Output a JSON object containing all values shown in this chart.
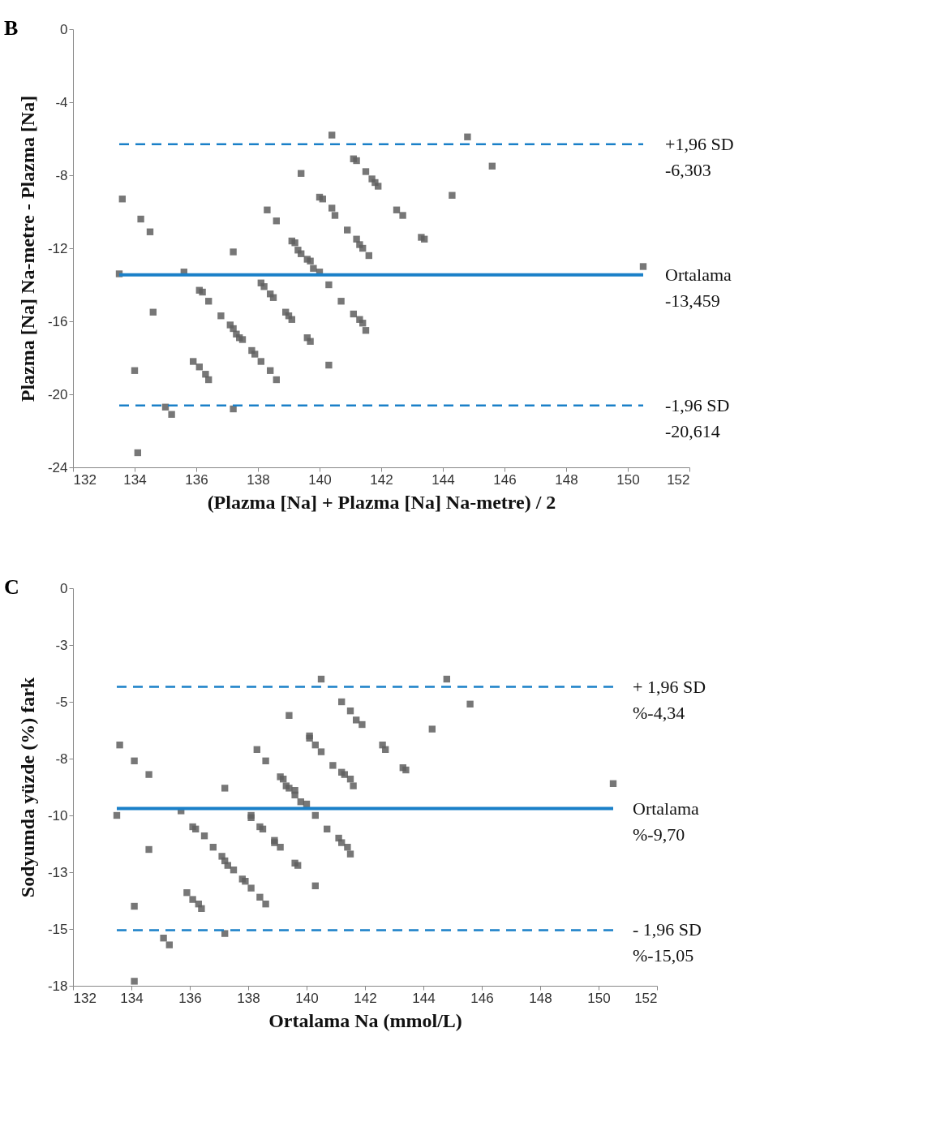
{
  "chart_data": [
    {
      "type": "scatter",
      "title": "B",
      "xlabel": "(Plazma [Na] + Plazma [Na] Na-metre) / 2",
      "ylabel": "Plazma [Na] Na-metre - Plazma [Na]",
      "marker": "square",
      "grid": false,
      "xlim": [
        132,
        152
      ],
      "xticks": [
        132,
        134,
        136,
        138,
        140,
        142,
        144,
        146,
        148,
        150,
        152
      ],
      "ylim": [
        -24,
        0
      ],
      "yticks": [
        0,
        -4,
        -8,
        -12,
        -16,
        -20,
        -24
      ],
      "series": [
        {
          "color": "#5f5f5f",
          "x": [
            133.6,
            134.2,
            134.5,
            133.5,
            135.6,
            134.6,
            136.1,
            136.2,
            136.4,
            136.8,
            137.1,
            137.2,
            137.3,
            137.4,
            137.5,
            135.9,
            136.1,
            136.3,
            136.4,
            134.0,
            135.0,
            135.2,
            137.2,
            134.1,
            137.2,
            138.3,
            138.6,
            138.1,
            138.2,
            138.4,
            138.5,
            138.9,
            139.0,
            139.1,
            137.8,
            137.9,
            138.1,
            138.4,
            138.6,
            139.1,
            139.2,
            139.3,
            139.4,
            139.6,
            139.7,
            139.8,
            140.0,
            139.4,
            139.6,
            139.7,
            140.0,
            140.1,
            140.4,
            140.5,
            140.3,
            140.7,
            140.3,
            140.4,
            141.1,
            141.2,
            141.5,
            141.7,
            141.8,
            141.9,
            140.9,
            141.2,
            141.3,
            141.4,
            141.6,
            141.1,
            141.3,
            141.4,
            141.5,
            142.5,
            142.7,
            143.3,
            143.4,
            144.3,
            144.8,
            145.6,
            150.5
          ],
          "values": [
            -9.3,
            -10.4,
            -11.1,
            -13.4,
            -13.3,
            -15.5,
            -14.3,
            -14.4,
            -14.9,
            -15.7,
            -16.2,
            -16.4,
            -16.7,
            -16.9,
            -17.0,
            -18.2,
            -18.5,
            -18.9,
            -19.2,
            -18.7,
            -20.7,
            -21.1,
            -20.8,
            -23.2,
            -12.2,
            -9.9,
            -10.5,
            -13.9,
            -14.1,
            -14.5,
            -14.7,
            -15.5,
            -15.7,
            -15.9,
            -17.6,
            -17.8,
            -18.2,
            -18.7,
            -19.2,
            -11.6,
            -11.7,
            -12.1,
            -12.3,
            -12.6,
            -12.7,
            -13.1,
            -13.3,
            -7.9,
            -16.9,
            -17.1,
            -9.2,
            -9.3,
            -9.8,
            -10.2,
            -14.0,
            -14.9,
            -18.4,
            -5.8,
            -7.1,
            -7.2,
            -7.8,
            -8.2,
            -8.4,
            -8.6,
            -11.0,
            -11.5,
            -11.8,
            -12.0,
            -12.4,
            -15.6,
            -15.9,
            -16.1,
            -16.5,
            -9.9,
            -10.2,
            -11.4,
            -11.5,
            -9.1,
            -5.9,
            -7.5,
            -13.0
          ]
        }
      ],
      "ref_lines": [
        {
          "axis": "y",
          "value": -6.303,
          "label": "+1,96 SD\n-6,303",
          "color": "#1a80c8",
          "line_style": "dashed"
        },
        {
          "axis": "y",
          "value": -13.459,
          "label": "Ortalama\n-13,459",
          "color": "#1a80c8",
          "line_style": "solid"
        },
        {
          "axis": "y",
          "value": -20.614,
          "label": "-1,96 SD\n-20,614",
          "color": "#1a80c8",
          "line_style": "dashed"
        }
      ]
    },
    {
      "type": "scatter",
      "title": "C",
      "xlabel": "Ortalama Na (mmol/L)",
      "ylabel": "Sodyumda yüzde (%) fark",
      "marker": "square",
      "grid": false,
      "xlim": [
        132,
        152
      ],
      "xticks": [
        132,
        134,
        136,
        138,
        140,
        142,
        144,
        146,
        148,
        150,
        152
      ],
      "ylim": [
        -17.5,
        0
      ],
      "yticks": [
        0,
        {
          "value": -2.5,
          "label": "-3"
        },
        -5,
        {
          "value": -7.5,
          "label": "-8"
        },
        -10,
        {
          "value": -12.5,
          "label": "-13"
        },
        -15,
        {
          "value": -17.5,
          "label": "-18"
        }
      ],
      "series": [
        {
          "color": "#5f5f5f",
          "x": [
            133.6,
            134.1,
            134.6,
            133.5,
            135.7,
            134.6,
            136.1,
            136.2,
            136.5,
            136.8,
            137.1,
            137.2,
            137.3,
            137.5,
            135.9,
            136.1,
            136.3,
            136.4,
            134.1,
            135.1,
            135.3,
            137.2,
            134.1,
            137.2,
            138.3,
            138.6,
            138.1,
            138.1,
            138.4,
            138.5,
            138.9,
            138.9,
            139.1,
            137.8,
            137.9,
            138.1,
            138.4,
            138.6,
            139.1,
            139.2,
            139.3,
            139.4,
            139.6,
            139.6,
            139.8,
            140.0,
            139.4,
            139.6,
            139.7,
            140.1,
            140.1,
            140.3,
            140.5,
            140.3,
            140.3,
            140.5,
            144.8,
            141.2,
            141.5,
            141.7,
            141.9,
            140.9,
            141.2,
            141.3,
            141.5,
            141.6,
            140.7,
            141.1,
            141.2,
            141.4,
            141.5,
            142.6,
            142.7,
            143.3,
            143.4,
            144.3,
            145.6,
            150.5
          ],
          "values": [
            -6.9,
            -7.6,
            -8.2,
            -10.0,
            -9.8,
            -11.5,
            -10.5,
            -10.6,
            -10.9,
            -11.4,
            -11.8,
            -12.0,
            -12.2,
            -12.4,
            -13.4,
            -13.7,
            -13.9,
            -14.1,
            -14.0,
            -15.4,
            -15.7,
            -15.2,
            -17.3,
            -8.8,
            -7.1,
            -7.6,
            -10.0,
            -10.1,
            -10.5,
            -10.6,
            -11.1,
            -11.2,
            -11.4,
            -12.8,
            -12.9,
            -13.2,
            -13.6,
            -13.9,
            -8.3,
            -8.4,
            -8.7,
            -8.8,
            -8.9,
            -9.1,
            -9.4,
            -9.5,
            -5.6,
            -12.1,
            -12.2,
            -6.5,
            -6.6,
            -6.9,
            -7.2,
            -10.0,
            -13.1,
            -4.0,
            -4.0,
            -5.0,
            -5.4,
            -5.8,
            -6.0,
            -7.8,
            -8.1,
            -8.2,
            -8.4,
            -8.7,
            -10.6,
            -11.0,
            -11.2,
            -11.4,
            -11.7,
            -6.9,
            -7.1,
            -7.9,
            -8.0,
            -6.2,
            -5.1,
            -8.6
          ]
        }
      ],
      "ref_lines": [
        {
          "axis": "y",
          "value": -4.34,
          "label": "+ 1,96 SD\n%-4,34",
          "color": "#1a80c8",
          "line_style": "dashed"
        },
        {
          "axis": "y",
          "value": -9.7,
          "label": "Ortalama\n%-9,70",
          "color": "#1a80c8",
          "line_style": "solid"
        },
        {
          "axis": "y",
          "value": -15.05,
          "label": "- 1,96 SD\n%-15,05",
          "color": "#1a80c8",
          "line_style": "dashed"
        }
      ]
    }
  ]
}
